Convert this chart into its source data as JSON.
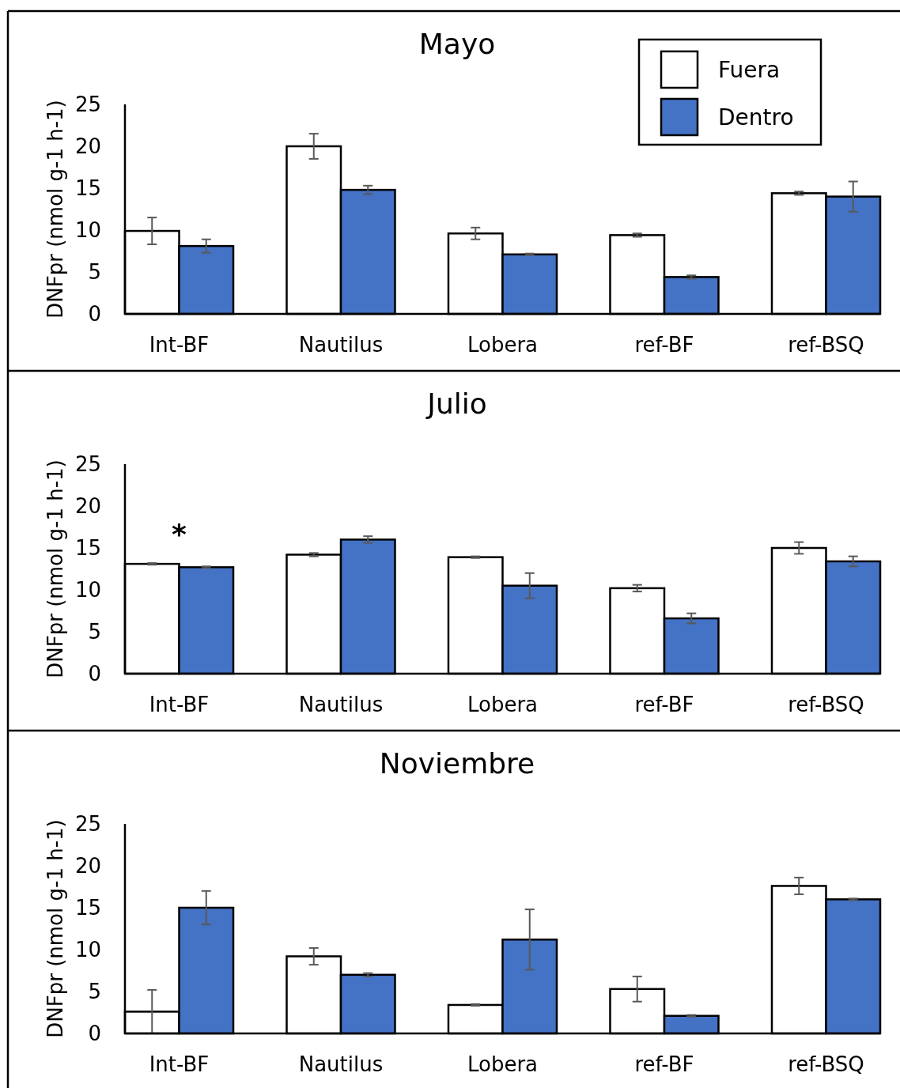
{
  "chart_data": [
    {
      "type": "bar",
      "title": "Mayo",
      "ylabel": "DNFpr (nmol g-1 h-1)",
      "categories": [
        "Int-BF",
        "Nautilus",
        "Lobera",
        "ref-BF",
        "ref-BSQ"
      ],
      "series": [
        {
          "name": "Fuera",
          "color": "#ffffff",
          "values": [
            9.9,
            20.0,
            9.6,
            9.4,
            14.4
          ],
          "errors": [
            1.6,
            1.5,
            0.7,
            0.2,
            0.2
          ]
        },
        {
          "name": "Dentro",
          "color": "#4472c4",
          "values": [
            8.1,
            14.8,
            7.1,
            4.4,
            14.0
          ],
          "errors": [
            0.8,
            0.5,
            0.1,
            0.2,
            1.8
          ]
        }
      ],
      "ylim": [
        0,
        25
      ],
      "yticks": [
        0,
        5,
        10,
        15,
        20,
        25
      ],
      "legend": "top right"
    },
    {
      "type": "bar",
      "title": "Julio",
      "ylabel": "DNFpr (nmol g-1 h-1)",
      "categories": [
        "Int-BF",
        "Nautilus",
        "Lobera",
        "ref-BF",
        "ref-BSQ"
      ],
      "series": [
        {
          "color": "#ffffff",
          "values": [
            13.1,
            14.2,
            13.9,
            10.2,
            15.0
          ],
          "errors": [
            0.1,
            0.2,
            0.1,
            0.4,
            0.7
          ]
        },
        {
          "color": "#4472c4",
          "values": [
            12.7,
            16.0,
            10.5,
            6.6,
            13.4
          ],
          "errors": [
            0.1,
            0.4,
            1.5,
            0.6,
            0.6
          ]
        }
      ],
      "ylim": [
        0,
        25
      ],
      "yticks": [
        0,
        5,
        10,
        15,
        20,
        25
      ],
      "annotations": [
        "*"
      ]
    },
    {
      "type": "bar",
      "title": "Noviembre",
      "ylabel": "DNFpr (nmol g-1 h-1)",
      "categories": [
        "Int-BF",
        "Nautilus",
        "Lobera",
        "ref-BF",
        "ref-BSQ"
      ],
      "series": [
        {
          "color": "#ffffff",
          "values": [
            2.6,
            9.2,
            3.4,
            5.3,
            17.6
          ],
          "errors": [
            2.6,
            1.0,
            0.1,
            1.5,
            1.0
          ]
        },
        {
          "color": "#4472c4",
          "values": [
            15.0,
            7.0,
            11.2,
            2.1,
            16.0
          ],
          "errors": [
            2.0,
            0.2,
            3.6,
            0.1,
            0.1
          ]
        }
      ],
      "ylim": [
        0,
        25
      ],
      "yticks": [
        0,
        5,
        10,
        15,
        20,
        25
      ]
    }
  ]
}
